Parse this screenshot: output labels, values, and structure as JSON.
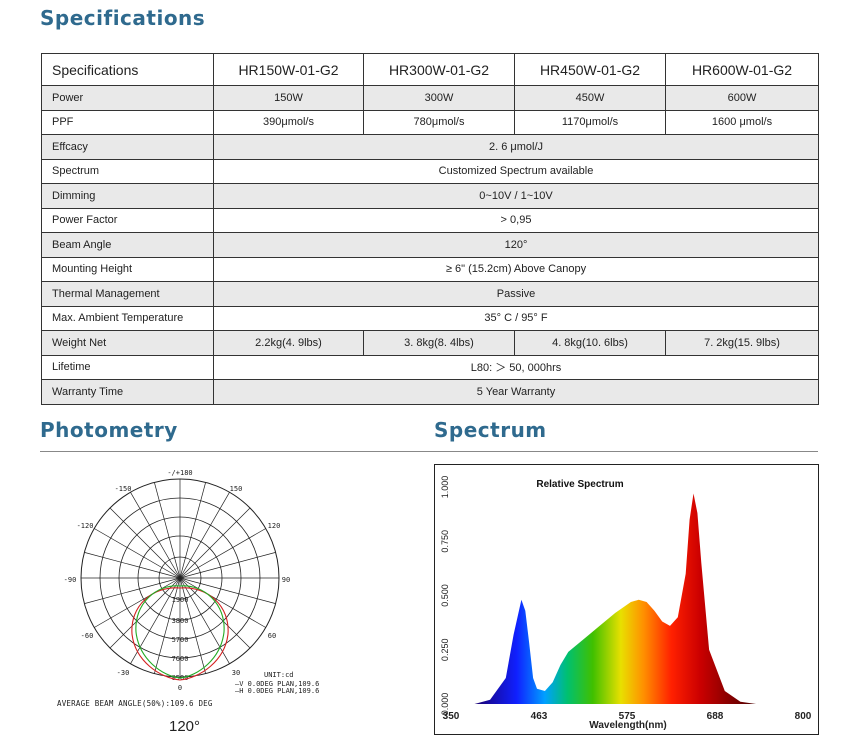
{
  "headings": {
    "specifications": "Specifications",
    "photometry": "Photometry",
    "spectrum": "Spectrum"
  },
  "table": {
    "header": [
      "Specifications",
      "HR150W-01-G2",
      "HR300W-01-G2",
      "HR450W-01-G2",
      "HR600W-01-G2"
    ],
    "rows": [
      {
        "label": "Power",
        "values": [
          "150W",
          "300W",
          "450W",
          "600W"
        ]
      },
      {
        "label": "PPF",
        "values": [
          "390μmol/s",
          "780μmol/s",
          "1170μmol/s",
          "1600 μmol/s"
        ]
      },
      {
        "label": "Effcacy",
        "value": "2. 6 μmol/J"
      },
      {
        "label": "Spectrum",
        "value": "Customized  Spectrum available"
      },
      {
        "label": "Dimming",
        "value": "0~10V / 1~10V"
      },
      {
        "label": "Power Factor",
        "value": "> 0,95"
      },
      {
        "label": "Beam Angle",
        "value": "120°"
      },
      {
        "label": "Mounting Height",
        "value": "≥ 6\" (15.2cm) Above Canopy"
      },
      {
        "label": "Thermal Management",
        "value": "Passive"
      },
      {
        "label": "Max.  Ambient Temperature",
        "value": "35°  C /  95°  F"
      },
      {
        "label": "Weight Net",
        "values": [
          "2.2kg(4. 9lbs)",
          "3. 8kg(8. 4lbs)",
          "4. 8kg(10. 6lbs)",
          "7. 2kg(15. 9lbs)"
        ]
      },
      {
        "label": "Lifetime",
        "value": "L80: ＞ 50, 000hrs"
      },
      {
        "label": "Warranty Time",
        "value": "5 Year  Warranty"
      }
    ]
  },
  "photometry": {
    "angle_labels": [
      "-/+180",
      "-150",
      "150",
      "-120",
      "120",
      "-90",
      "90",
      "-60",
      "60",
      "-30",
      "30",
      "0"
    ],
    "radial_labels": [
      "0",
      "1900",
      "3800",
      "5700",
      "7600",
      "9500"
    ],
    "unit": "UNIT:cd",
    "legend": [
      {
        "label": "—V  0.0DEG  PLAN,109.6",
        "color": "#d42020"
      },
      {
        "label": "—H  0.0DEG  PLAN,109.6",
        "color": "#22aa22"
      }
    ],
    "footnote": "AVERAGE  BEAM  ANGLE(50%):109.6  DEG",
    "beam_angle": "120°"
  },
  "chart_data": {
    "type": "area",
    "title": "Relative Spectrum",
    "xlabel": "Wavelength(nm)",
    "ylabel": "",
    "xlim": [
      350,
      800
    ],
    "ylim": [
      0,
      1
    ],
    "x_ticks": [
      "350",
      "463",
      "575",
      "688",
      "800"
    ],
    "y_ticks": [
      "0.000",
      "0.250",
      "0.500",
      "0.750",
      "1.000"
    ],
    "series": [
      {
        "x": [
          380,
          400,
          420,
          430,
          440,
          445,
          450,
          455,
          460,
          470,
          480,
          490,
          500,
          520,
          540,
          560,
          580,
          590,
          600,
          610,
          620,
          630,
          640,
          650,
          655,
          660,
          665,
          670,
          680,
          700,
          720,
          740
        ],
        "y": [
          0.0,
          0.02,
          0.12,
          0.32,
          0.48,
          0.43,
          0.28,
          0.12,
          0.07,
          0.06,
          0.1,
          0.18,
          0.24,
          0.3,
          0.36,
          0.42,
          0.47,
          0.48,
          0.47,
          0.43,
          0.38,
          0.36,
          0.4,
          0.6,
          0.85,
          0.97,
          0.88,
          0.65,
          0.25,
          0.06,
          0.01,
          0.0
        ]
      }
    ]
  }
}
